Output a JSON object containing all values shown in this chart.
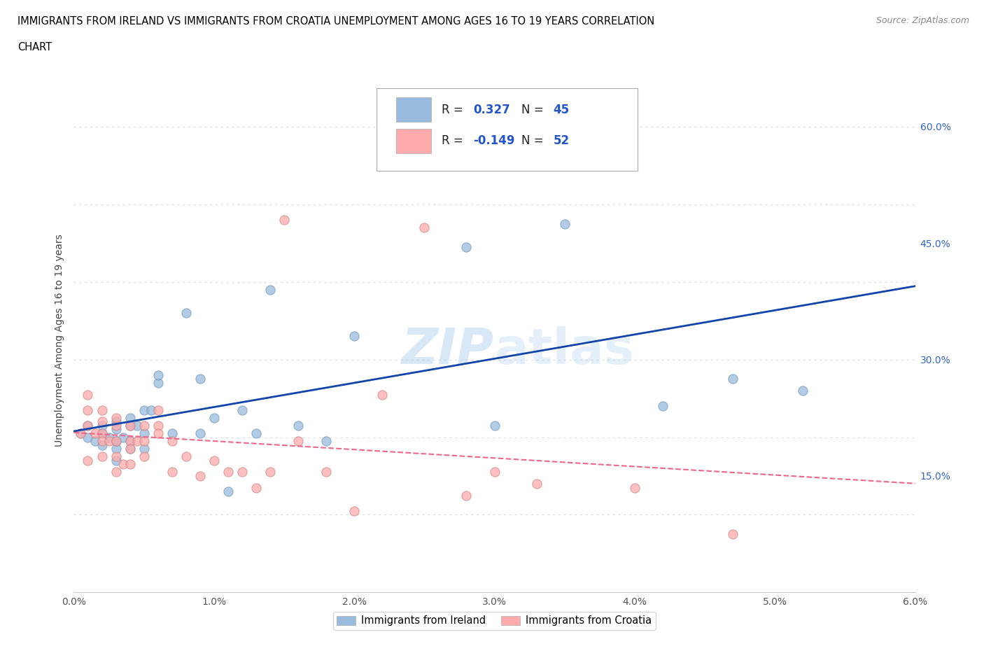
{
  "title_line1": "IMMIGRANTS FROM IRELAND VS IMMIGRANTS FROM CROATIA UNEMPLOYMENT AMONG AGES 16 TO 19 YEARS CORRELATION",
  "title_line2": "CHART",
  "source": "Source: ZipAtlas.com",
  "ylabel": "Unemployment Among Ages 16 to 19 years",
  "xlim": [
    0.0,
    0.06
  ],
  "ylim": [
    0.0,
    0.65
  ],
  "xtick_labels": [
    "0.0%",
    "1.0%",
    "2.0%",
    "3.0%",
    "4.0%",
    "5.0%",
    "6.0%"
  ],
  "xtick_vals": [
    0.0,
    0.01,
    0.02,
    0.03,
    0.04,
    0.05,
    0.06
  ],
  "ytick_labels": [
    "15.0%",
    "30.0%",
    "45.0%",
    "60.0%"
  ],
  "ytick_vals": [
    0.15,
    0.3,
    0.45,
    0.6
  ],
  "ireland_color": "#99BBDD",
  "croatia_color": "#FFAAAA",
  "ireland_R": 0.327,
  "ireland_N": 45,
  "croatia_R": -0.149,
  "croatia_N": 52,
  "ireland_line_color": "#1144AA",
  "croatia_line_color": "#EE6688",
  "ireland_scatter_x": [
    0.0005,
    0.001,
    0.001,
    0.0015,
    0.002,
    0.002,
    0.002,
    0.0025,
    0.003,
    0.003,
    0.003,
    0.003,
    0.003,
    0.003,
    0.0035,
    0.004,
    0.004,
    0.004,
    0.004,
    0.0045,
    0.005,
    0.005,
    0.005,
    0.0055,
    0.006,
    0.006,
    0.007,
    0.008,
    0.009,
    0.009,
    0.01,
    0.011,
    0.012,
    0.013,
    0.014,
    0.016,
    0.018,
    0.02,
    0.025,
    0.028,
    0.03,
    0.035,
    0.042,
    0.047,
    0.052
  ],
  "ireland_scatter_y": [
    0.205,
    0.2,
    0.215,
    0.195,
    0.19,
    0.205,
    0.215,
    0.2,
    0.185,
    0.195,
    0.21,
    0.22,
    0.195,
    0.17,
    0.2,
    0.215,
    0.225,
    0.195,
    0.185,
    0.215,
    0.235,
    0.205,
    0.185,
    0.235,
    0.27,
    0.28,
    0.205,
    0.36,
    0.275,
    0.205,
    0.225,
    0.13,
    0.235,
    0.205,
    0.39,
    0.215,
    0.195,
    0.33,
    0.555,
    0.445,
    0.215,
    0.475,
    0.24,
    0.275,
    0.26
  ],
  "croatia_scatter_x": [
    0.0005,
    0.001,
    0.001,
    0.001,
    0.001,
    0.0015,
    0.002,
    0.002,
    0.002,
    0.002,
    0.002,
    0.0025,
    0.003,
    0.003,
    0.003,
    0.003,
    0.003,
    0.0035,
    0.004,
    0.004,
    0.004,
    0.004,
    0.0045,
    0.005,
    0.005,
    0.005,
    0.006,
    0.006,
    0.006,
    0.007,
    0.007,
    0.008,
    0.009,
    0.01,
    0.011,
    0.012,
    0.013,
    0.014,
    0.015,
    0.016,
    0.018,
    0.02,
    0.022,
    0.025,
    0.028,
    0.03,
    0.033,
    0.04,
    0.047
  ],
  "croatia_scatter_y": [
    0.205,
    0.215,
    0.235,
    0.255,
    0.17,
    0.205,
    0.22,
    0.235,
    0.205,
    0.195,
    0.175,
    0.195,
    0.215,
    0.225,
    0.195,
    0.175,
    0.155,
    0.165,
    0.215,
    0.195,
    0.185,
    0.165,
    0.195,
    0.215,
    0.195,
    0.175,
    0.235,
    0.215,
    0.205,
    0.195,
    0.155,
    0.175,
    0.15,
    0.17,
    0.155,
    0.155,
    0.135,
    0.155,
    0.48,
    0.195,
    0.155,
    0.105,
    0.255,
    0.47,
    0.125,
    0.155,
    0.14,
    0.135,
    0.075
  ],
  "background_color": "#FFFFFF",
  "grid_color": "#DDDDDD",
  "legend_R1": "0.327",
  "legend_N1": "45",
  "legend_R2": "-0.149",
  "legend_N2": "52"
}
